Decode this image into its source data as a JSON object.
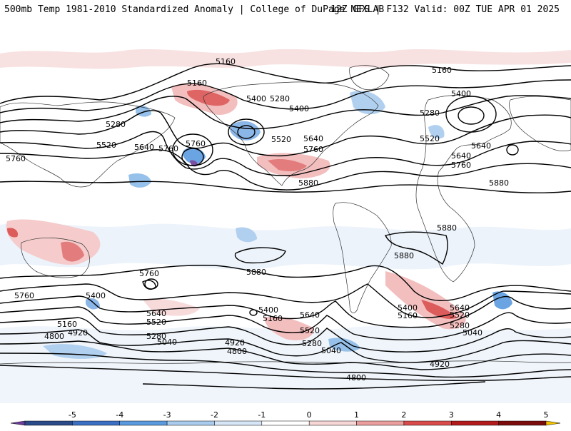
{
  "header": {
    "title_left": "500mb Temp 1981-2010 Standardized Anomaly | College of DuPage NEXLAB",
    "title_right": "12Z GFS | F132 Valid: 00Z TUE APR 01 2025"
  },
  "colorbar": {
    "tick_labels": [
      "-5",
      "-4",
      "-3",
      "-2",
      "-1",
      "0",
      "1",
      "2",
      "3",
      "4",
      "5"
    ],
    "colors": [
      "#6a3d9a",
      "#2b4a8a",
      "#3b6fc4",
      "#5a9be0",
      "#a9cbee",
      "#d6e6f6",
      "#ffffff",
      "#f7d6d6",
      "#ec9e9e",
      "#d94a4a",
      "#b31a1a",
      "#7a0c0c",
      "#f2c200"
    ]
  },
  "contour_labels": [
    "5160",
    "5160",
    "5160",
    "5160",
    "5160",
    "5160",
    "5400",
    "5400",
    "5400",
    "5400",
    "5400",
    "5400",
    "5280",
    "5280",
    "5280",
    "5280",
    "5280",
    "5280",
    "5520",
    "5520",
    "5520",
    "5520",
    "5520",
    "5520",
    "5640",
    "5640",
    "5640",
    "5640",
    "5640",
    "5640",
    "5640",
    "5760",
    "5760",
    "5760",
    "5760",
    "5760",
    "5760",
    "5760",
    "5880",
    "5880",
    "5880",
    "5880",
    "5880",
    "5040",
    "5040",
    "5040",
    "4920",
    "4920",
    "4920",
    "4800",
    "4800",
    "4800"
  ]
}
